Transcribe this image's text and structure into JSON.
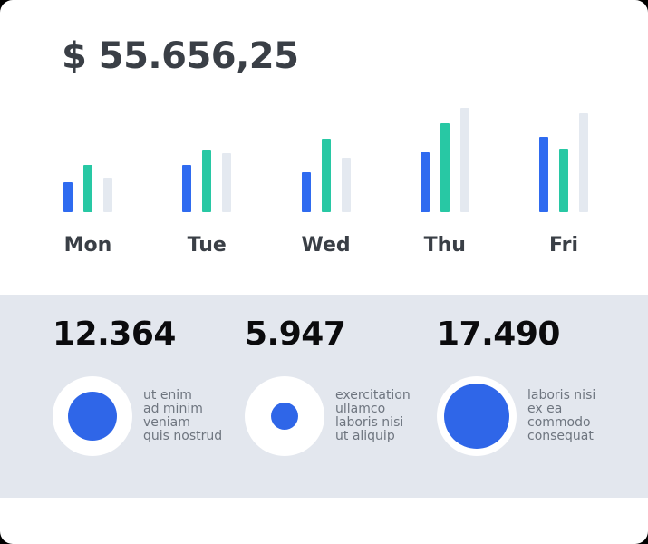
{
  "header": {
    "balance_label": "$ 55.656,25"
  },
  "chart_data": {
    "type": "bar",
    "title": "$ 55.656,25",
    "categories": [
      "Mon",
      "Tue",
      "Wed",
      "Thu",
      "Fri"
    ],
    "series": [
      {
        "name": "blue",
        "color": "#2F6BF0",
        "values": [
          33,
          52,
          44,
          66,
          83
        ]
      },
      {
        "name": "green",
        "color": "#28C8A4",
        "values": [
          52,
          69,
          81,
          98,
          70
        ]
      },
      {
        "name": "light-gray",
        "color": "#E4E9F0",
        "values": [
          38,
          65,
          60,
          115,
          109
        ]
      }
    ],
    "xlabel": "",
    "ylabel": "",
    "ylim": [
      0,
      120
    ],
    "grid": false,
    "legend": "none"
  },
  "stats": [
    {
      "value": "12.364",
      "description": "ut enim\nad minim\nveniam\nquis nostrud",
      "inner_circle_diameter": 54
    },
    {
      "value": "5.947",
      "description": "exercitation\nullamco\nlaboris nisi\nut aliquip",
      "inner_circle_diameter": 30
    },
    {
      "value": "17.490",
      "description": "laboris nisi\nex ea\ncommodo\nconsequat",
      "inner_circle_diameter": 72
    }
  ],
  "colors": {
    "card_bg": "#FFFFFF",
    "band_bg": "#E3E7EE",
    "heading_text": "#3A3F46",
    "stat_number_text": "#0B0B0D",
    "description_text": "#6E757F",
    "circle_blue": "#2F66E8",
    "circle_ring_white": "#FFFFFF",
    "bar_blue": "#2F6BF0",
    "bar_green": "#28C8A4",
    "bar_gray": "#E4E9F0"
  }
}
